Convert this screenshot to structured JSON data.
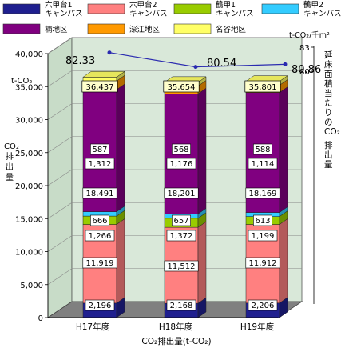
{
  "chart_data": {
    "type": "bar",
    "categories": [
      "H17年度",
      "H18年度",
      "H19年度"
    ],
    "xlabel": "CO₂排出量(t-CO₂)",
    "ylabel_lines": [
      "CO₂",
      "排",
      "出",
      "量"
    ],
    "yunit": "t-CO₂",
    "ylim": [
      0,
      40000
    ],
    "yticks": [
      "0",
      "5,000",
      "10,000",
      "15,000",
      "20,000",
      "25,000",
      "30,000",
      "35,000",
      "40,000"
    ],
    "y2unit": "t-CO₂/千m²",
    "y2label_chars": [
      "延",
      "床",
      "面",
      "積",
      "当",
      "た",
      "り",
      "の",
      "CO₂",
      "排",
      "出",
      "量"
    ],
    "y2lim": [
      79,
      83
    ],
    "y2ticks": [
      "80",
      "83"
    ],
    "series": [
      {
        "name": "六甲台1キャンパス",
        "legend_lines": [
          "六甲台1",
          "キャンパス"
        ],
        "color": "#1f1f8f",
        "values": [
          2196,
          2168,
          2206
        ],
        "labels": [
          "2,196",
          "2,168",
          "2,206"
        ]
      },
      {
        "name": "六甲台2キャンパス",
        "legend_lines": [
          "六甲台2",
          "キャンパス"
        ],
        "color": "#ff8080",
        "values": [
          11919,
          11512,
          11912
        ],
        "labels": [
          "11,919",
          "11,512",
          "11,912"
        ]
      },
      {
        "name": "鶴甲1キャンパス",
        "legend_lines": [
          "鶴甲1",
          "キャンパス"
        ],
        "color": "#99cc00",
        "values": [
          1266,
          1372,
          1199
        ],
        "labels": [
          "1,266",
          "1,372",
          "1,199"
        ]
      },
      {
        "name": "鶴甲2キャンパス",
        "legend_lines": [
          "鶴甲2",
          "キャンパス"
        ],
        "color": "#33ccff",
        "values": [
          666,
          657,
          613
        ],
        "labels": [
          "666",
          "657",
          "613"
        ]
      },
      {
        "name": "楠地区",
        "legend_lines": [
          "楠地区"
        ],
        "color": "#800080",
        "values": [
          18491,
          18201,
          18169
        ],
        "labels": [
          "18,491",
          "18,201",
          "18,169"
        ]
      },
      {
        "name": "深江地区",
        "legend_lines": [
          "深江地区"
        ],
        "color": "#ff9900",
        "values": [
          1312,
          1176,
          1114
        ],
        "labels": [
          "1,312",
          "1,176",
          "1,114"
        ]
      },
      {
        "name": "名谷地区",
        "legend_lines": [
          "名谷地区"
        ],
        "color": "#ffff66",
        "values": [
          587,
          568,
          588
        ],
        "labels": [
          "587",
          "568",
          "588"
        ]
      }
    ],
    "totals": [
      "36,437",
      "35,654",
      "35,801"
    ],
    "line": {
      "values": [
        82.33,
        80.54,
        80.86
      ],
      "labels": [
        "82.33",
        "80.54",
        "80.86"
      ],
      "color": "#2b2bb0"
    },
    "grid": true,
    "legend_position": "top",
    "colors": {
      "wall": "#d9e8d9",
      "floor": "#808080"
    }
  }
}
